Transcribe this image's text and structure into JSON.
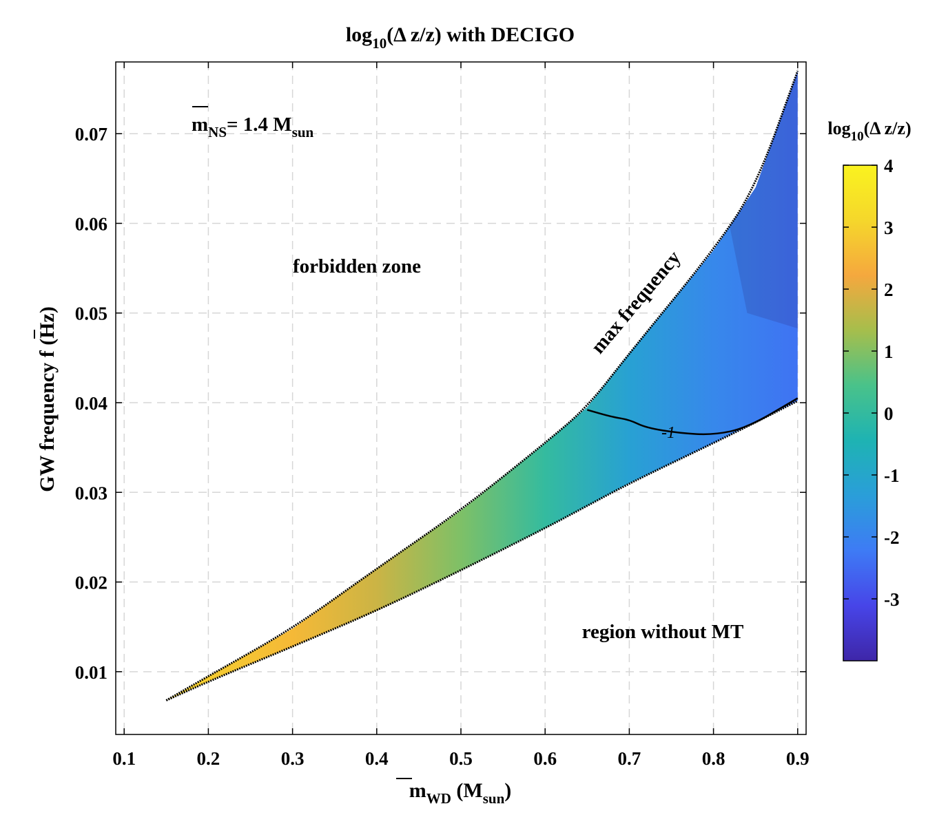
{
  "chart_data": {
    "type": "heatmap",
    "title": "log₁₀(Δ z/z) with DECIGO",
    "title_parts": {
      "pre": "log",
      "sub": "10",
      "post": "(Δ z/z) with DECIGO"
    },
    "xlabel": "m̄_WD (M_sun)",
    "xlabel_parts": {
      "m": "m",
      "sub": "WD",
      "post": " (M",
      "sub2": "sun",
      "end": ")"
    },
    "ylabel": "GW frequency f̄ (Hz)",
    "ylabel_parts": {
      "pre": "GW frequency ",
      "f": "f",
      "post": " (Hz)"
    },
    "xlim": [
      0.09,
      0.91
    ],
    "ylim": [
      0.003,
      0.078
    ],
    "xticks": [
      0.1,
      0.2,
      0.3,
      0.4,
      0.5,
      0.6,
      0.7,
      0.8,
      0.9
    ],
    "xtick_labels": [
      "0.1",
      "0.2",
      "0.3",
      "0.4",
      "0.5",
      "0.6",
      "0.7",
      "0.8",
      "0.9"
    ],
    "yticks": [
      0.01,
      0.02,
      0.03,
      0.04,
      0.05,
      0.06,
      0.07
    ],
    "ytick_labels": [
      "0.01",
      "0.02",
      "0.03",
      "0.04",
      "0.05",
      "0.06",
      "0.07"
    ],
    "grid": true,
    "region": {
      "upper_boundary_x": [
        0.15,
        0.2,
        0.3,
        0.4,
        0.5,
        0.6,
        0.65,
        0.7,
        0.8,
        0.85,
        0.9
      ],
      "upper_boundary_y": [
        0.0068,
        0.0095,
        0.0148,
        0.0215,
        0.028,
        0.0355,
        0.0395,
        0.0455,
        0.057,
        0.064,
        0.077
      ],
      "lower_boundary_x": [
        0.15,
        0.2,
        0.3,
        0.4,
        0.5,
        0.6,
        0.65,
        0.7,
        0.8,
        0.85,
        0.9
      ],
      "lower_boundary_y": [
        0.0068,
        0.0089,
        0.0128,
        0.0168,
        0.0213,
        0.026,
        0.0285,
        0.031,
        0.0355,
        0.0378,
        0.0402
      ],
      "value_at_x": [
        0.15,
        0.2,
        0.3,
        0.4,
        0.5,
        0.6,
        0.7,
        0.8,
        0.9
      ],
      "value_low": [
        3.1,
        2.9,
        2.6,
        1.8,
        1.0,
        0.1,
        -0.6,
        -1.0,
        -1.4
      ],
      "value_high": [
        3.1,
        2.9,
        2.5,
        1.7,
        0.9,
        -0.1,
        -1.8,
        -2.8,
        -3.3
      ]
    },
    "contour_levels": [
      -1
    ],
    "contour_label": "-1",
    "colorbar": {
      "title": "log₁₀(Δ z/z)",
      "title_parts": {
        "pre": "log",
        "sub": "10",
        "post": "(Δ z/z)"
      },
      "range": [
        -4,
        4
      ],
      "ticks": [
        4,
        3,
        2,
        1,
        0,
        -1,
        -2,
        -3
      ],
      "tick_labels": [
        "4",
        "3",
        "2",
        "1",
        "0",
        "-1",
        "-2",
        "-3"
      ],
      "colors": [
        "#3e26a8",
        "#4745e8",
        "#3e7bf5",
        "#2a9ed9",
        "#1eb3b3",
        "#49c28a",
        "#a6be4c",
        "#f5a83e",
        "#f5d72b",
        "#faf31f"
      ]
    },
    "annotations": {
      "forbidden": "forbidden zone",
      "no_mt": "region without MT",
      "max_freq": "max frequency",
      "mass_parts": {
        "m": "m",
        "sub": "NS",
        "post": "= 1.4 M",
        "sub2": "sun"
      }
    }
  }
}
